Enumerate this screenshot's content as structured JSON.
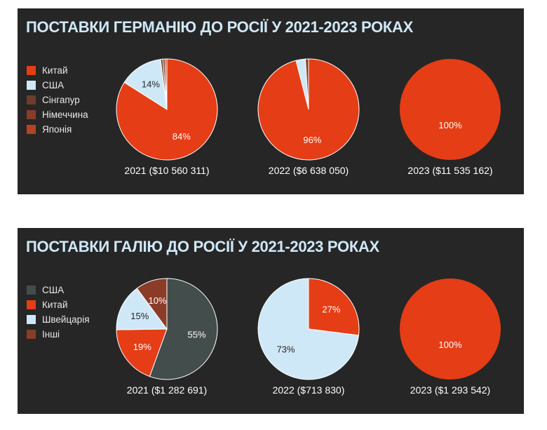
{
  "chart_data": [
    {
      "type": "pie",
      "title": "ПОСТАВКИ ГЕРМАНІЮ ДО РОСІЇ У 2021-2023 РОКАХ",
      "legend": [
        {
          "name": "Китай",
          "color": "#e53d16"
        },
        {
          "name": "США",
          "color": "#cfe8f8"
        },
        {
          "name": "Сінгапур",
          "color": "#6e3b2e"
        },
        {
          "name": "Німеччина",
          "color": "#8b3c28"
        },
        {
          "name": "Японія",
          "color": "#b8431f"
        }
      ],
      "pies": [
        {
          "caption": "2021 ($10 560 311)",
          "slices": [
            {
              "name": "Китай",
              "value": 84,
              "label": "84%"
            },
            {
              "name": "США",
              "value": 14,
              "label": "14%"
            },
            {
              "name": "Сінгапур",
              "value": 0.7,
              "label": ""
            },
            {
              "name": "Німеччина",
              "value": 0.7,
              "label": ""
            },
            {
              "name": "Японія",
              "value": 0.6,
              "label": ""
            }
          ]
        },
        {
          "caption": "2022 ($6 638 050)",
          "slices": [
            {
              "name": "Китай",
              "value": 96,
              "label": "96%"
            },
            {
              "name": "США",
              "value": 3,
              "label": ""
            },
            {
              "name": "Німеччина",
              "value": 1,
              "label": ""
            }
          ]
        },
        {
          "caption": "2023 ($11 535 162)",
          "slices": [
            {
              "name": "Китай",
              "value": 100,
              "label": "100%"
            }
          ]
        }
      ]
    },
    {
      "type": "pie",
      "title": "ПОСТАВКИ ГАЛІЮ ДО РОСІЇ У 2021-2023 РОКАХ",
      "legend": [
        {
          "name": "США",
          "color": "#434d4b"
        },
        {
          "name": "Китай",
          "color": "#e53d16"
        },
        {
          "name": "Швейцарія",
          "color": "#cfe8f8"
        },
        {
          "name": "Інші",
          "color": "#8b3c28"
        }
      ],
      "pies": [
        {
          "caption": "2021 ($1 282 691)",
          "slices": [
            {
              "name": "США",
              "value": 55,
              "label": "55%"
            },
            {
              "name": "Китай",
              "value": 19,
              "label": "19%"
            },
            {
              "name": "Швейцарія",
              "value": 15,
              "label": "15%"
            },
            {
              "name": "Інші",
              "value": 10,
              "label": "10%"
            }
          ]
        },
        {
          "caption": "2022 ($713 830)",
          "slices": [
            {
              "name": "Китай",
              "value": 27,
              "label": "27%"
            },
            {
              "name": "Швейцарія",
              "value": 73,
              "label": "73%"
            }
          ]
        },
        {
          "caption": "2023 ($1 293 542)",
          "slices": [
            {
              "name": "Китай",
              "value": 100,
              "label": "100%"
            }
          ]
        }
      ]
    }
  ]
}
